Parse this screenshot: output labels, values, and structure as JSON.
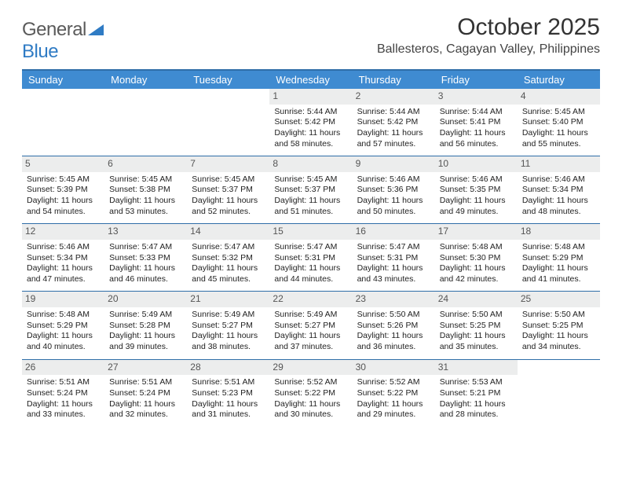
{
  "brand": {
    "word1": "General",
    "word2": "Blue"
  },
  "header": {
    "title": "October 2025",
    "location": "Ballesteros, Cagayan Valley, Philippines"
  },
  "colors": {
    "header_bar": "#3f8bd1",
    "week_border": "#2f6ea8",
    "daynum_bg": "#eceded",
    "brand_blue": "#2f7bc4"
  },
  "day_labels": [
    "Sunday",
    "Monday",
    "Tuesday",
    "Wednesday",
    "Thursday",
    "Friday",
    "Saturday"
  ],
  "weeks": [
    [
      {
        "n": "",
        "lines": []
      },
      {
        "n": "",
        "lines": []
      },
      {
        "n": "",
        "lines": []
      },
      {
        "n": "1",
        "lines": [
          "Sunrise: 5:44 AM",
          "Sunset: 5:42 PM",
          "Daylight: 11 hours and 58 minutes."
        ]
      },
      {
        "n": "2",
        "lines": [
          "Sunrise: 5:44 AM",
          "Sunset: 5:42 PM",
          "Daylight: 11 hours and 57 minutes."
        ]
      },
      {
        "n": "3",
        "lines": [
          "Sunrise: 5:44 AM",
          "Sunset: 5:41 PM",
          "Daylight: 11 hours and 56 minutes."
        ]
      },
      {
        "n": "4",
        "lines": [
          "Sunrise: 5:45 AM",
          "Sunset: 5:40 PM",
          "Daylight: 11 hours and 55 minutes."
        ]
      }
    ],
    [
      {
        "n": "5",
        "lines": [
          "Sunrise: 5:45 AM",
          "Sunset: 5:39 PM",
          "Daylight: 11 hours and 54 minutes."
        ]
      },
      {
        "n": "6",
        "lines": [
          "Sunrise: 5:45 AM",
          "Sunset: 5:38 PM",
          "Daylight: 11 hours and 53 minutes."
        ]
      },
      {
        "n": "7",
        "lines": [
          "Sunrise: 5:45 AM",
          "Sunset: 5:37 PM",
          "Daylight: 11 hours and 52 minutes."
        ]
      },
      {
        "n": "8",
        "lines": [
          "Sunrise: 5:45 AM",
          "Sunset: 5:37 PM",
          "Daylight: 11 hours and 51 minutes."
        ]
      },
      {
        "n": "9",
        "lines": [
          "Sunrise: 5:46 AM",
          "Sunset: 5:36 PM",
          "Daylight: 11 hours and 50 minutes."
        ]
      },
      {
        "n": "10",
        "lines": [
          "Sunrise: 5:46 AM",
          "Sunset: 5:35 PM",
          "Daylight: 11 hours and 49 minutes."
        ]
      },
      {
        "n": "11",
        "lines": [
          "Sunrise: 5:46 AM",
          "Sunset: 5:34 PM",
          "Daylight: 11 hours and 48 minutes."
        ]
      }
    ],
    [
      {
        "n": "12",
        "lines": [
          "Sunrise: 5:46 AM",
          "Sunset: 5:34 PM",
          "Daylight: 11 hours and 47 minutes."
        ]
      },
      {
        "n": "13",
        "lines": [
          "Sunrise: 5:47 AM",
          "Sunset: 5:33 PM",
          "Daylight: 11 hours and 46 minutes."
        ]
      },
      {
        "n": "14",
        "lines": [
          "Sunrise: 5:47 AM",
          "Sunset: 5:32 PM",
          "Daylight: 11 hours and 45 minutes."
        ]
      },
      {
        "n": "15",
        "lines": [
          "Sunrise: 5:47 AM",
          "Sunset: 5:31 PM",
          "Daylight: 11 hours and 44 minutes."
        ]
      },
      {
        "n": "16",
        "lines": [
          "Sunrise: 5:47 AM",
          "Sunset: 5:31 PM",
          "Daylight: 11 hours and 43 minutes."
        ]
      },
      {
        "n": "17",
        "lines": [
          "Sunrise: 5:48 AM",
          "Sunset: 5:30 PM",
          "Daylight: 11 hours and 42 minutes."
        ]
      },
      {
        "n": "18",
        "lines": [
          "Sunrise: 5:48 AM",
          "Sunset: 5:29 PM",
          "Daylight: 11 hours and 41 minutes."
        ]
      }
    ],
    [
      {
        "n": "19",
        "lines": [
          "Sunrise: 5:48 AM",
          "Sunset: 5:29 PM",
          "Daylight: 11 hours and 40 minutes."
        ]
      },
      {
        "n": "20",
        "lines": [
          "Sunrise: 5:49 AM",
          "Sunset: 5:28 PM",
          "Daylight: 11 hours and 39 minutes."
        ]
      },
      {
        "n": "21",
        "lines": [
          "Sunrise: 5:49 AM",
          "Sunset: 5:27 PM",
          "Daylight: 11 hours and 38 minutes."
        ]
      },
      {
        "n": "22",
        "lines": [
          "Sunrise: 5:49 AM",
          "Sunset: 5:27 PM",
          "Daylight: 11 hours and 37 minutes."
        ]
      },
      {
        "n": "23",
        "lines": [
          "Sunrise: 5:50 AM",
          "Sunset: 5:26 PM",
          "Daylight: 11 hours and 36 minutes."
        ]
      },
      {
        "n": "24",
        "lines": [
          "Sunrise: 5:50 AM",
          "Sunset: 5:25 PM",
          "Daylight: 11 hours and 35 minutes."
        ]
      },
      {
        "n": "25",
        "lines": [
          "Sunrise: 5:50 AM",
          "Sunset: 5:25 PM",
          "Daylight: 11 hours and 34 minutes."
        ]
      }
    ],
    [
      {
        "n": "26",
        "lines": [
          "Sunrise: 5:51 AM",
          "Sunset: 5:24 PM",
          "Daylight: 11 hours and 33 minutes."
        ]
      },
      {
        "n": "27",
        "lines": [
          "Sunrise: 5:51 AM",
          "Sunset: 5:24 PM",
          "Daylight: 11 hours and 32 minutes."
        ]
      },
      {
        "n": "28",
        "lines": [
          "Sunrise: 5:51 AM",
          "Sunset: 5:23 PM",
          "Daylight: 11 hours and 31 minutes."
        ]
      },
      {
        "n": "29",
        "lines": [
          "Sunrise: 5:52 AM",
          "Sunset: 5:22 PM",
          "Daylight: 11 hours and 30 minutes."
        ]
      },
      {
        "n": "30",
        "lines": [
          "Sunrise: 5:52 AM",
          "Sunset: 5:22 PM",
          "Daylight: 11 hours and 29 minutes."
        ]
      },
      {
        "n": "31",
        "lines": [
          "Sunrise: 5:53 AM",
          "Sunset: 5:21 PM",
          "Daylight: 11 hours and 28 minutes."
        ]
      },
      {
        "n": "",
        "lines": []
      }
    ]
  ]
}
